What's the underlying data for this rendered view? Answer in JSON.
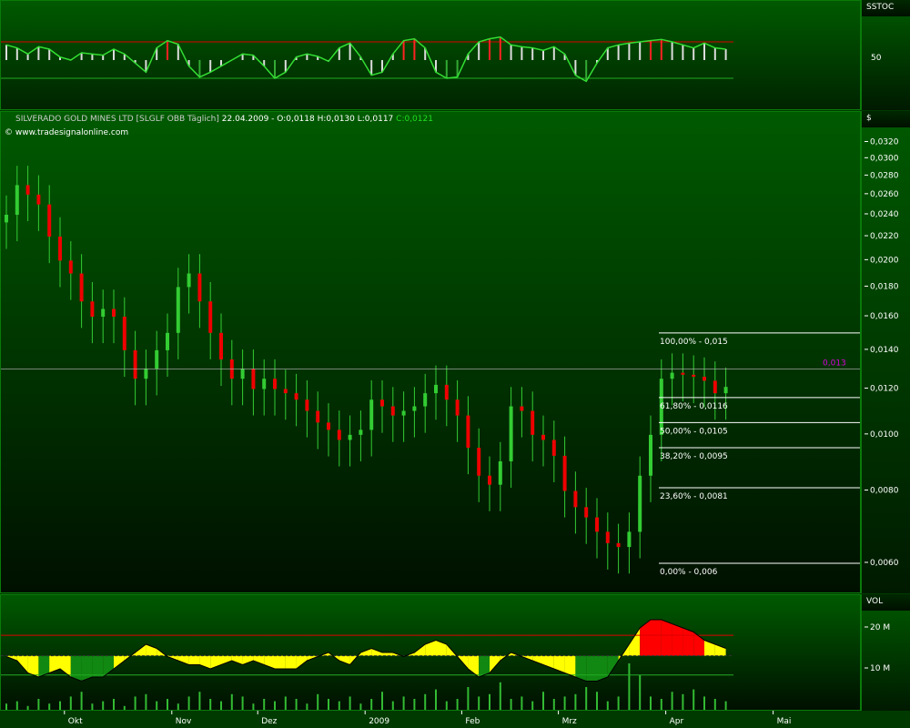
{
  "header": {
    "instrument": "SILVERADO GOLD MINES LTD [SLGLF OBB  Täglich]",
    "ohlc": "22.04.2009 - O:0,0118 H:0,0130 L:0,0117",
    "close": "C:0,0121",
    "copyright": "© www.tradesignalonline.com"
  },
  "colors": {
    "up": "#33cc33",
    "down": "#ee0000",
    "fib": "#ffffff",
    "marker": "#dd00dd",
    "bg_top": "#005a00",
    "bg_bottom": "#001000",
    "overbought": "#ff0000",
    "oversold": "#ffff00"
  },
  "sstoc": {
    "label": "SSTOC",
    "tick": "50",
    "ylim": [
      0,
      100
    ],
    "values": [
      75,
      70,
      60,
      72,
      68,
      55,
      50,
      62,
      60,
      58,
      68,
      60,
      45,
      30,
      70,
      82,
      76,
      40,
      22,
      30,
      40,
      50,
      60,
      58,
      40,
      20,
      30,
      55,
      60,
      56,
      48,
      70,
      78,
      55,
      25,
      30,
      60,
      82,
      85,
      70,
      30,
      20,
      22,
      60,
      80,
      85,
      88,
      75,
      72,
      70,
      66,
      72,
      60,
      25,
      15,
      45,
      70,
      75,
      78,
      80,
      82,
      84,
      80,
      75,
      70,
      78,
      70,
      68
    ]
  },
  "chart_data": {
    "type": "candlestick",
    "scale": "log",
    "ylim": [
      0.0055,
      0.033
    ],
    "currency_label": "$",
    "yticks": [
      "0,0320",
      "0,0300",
      "0,0280",
      "0,0260",
      "0,0240",
      "0,0220",
      "0,0200",
      "0,0180",
      "0,0160",
      "0,0140",
      "0,0120",
      "0,0100",
      "0,0080",
      "0,0060"
    ],
    "ytick_values": [
      0.032,
      0.03,
      0.028,
      0.026,
      0.024,
      0.022,
      0.02,
      0.018,
      0.016,
      0.014,
      0.012,
      0.01,
      0.008,
      0.006
    ],
    "xticks": [
      {
        "label": "Okt",
        "index": 6
      },
      {
        "label": "Nov",
        "index": 16
      },
      {
        "label": "Dez",
        "index": 24
      },
      {
        "label": "2009",
        "index": 34
      },
      {
        "label": "Feb",
        "index": 43
      },
      {
        "label": "Mrz",
        "index": 52
      },
      {
        "label": "Apr",
        "index": 62
      },
      {
        "label": "Mai",
        "index": 72
      }
    ],
    "close": [
      0.024,
      0.027,
      0.026,
      0.025,
      0.022,
      0.02,
      0.019,
      0.017,
      0.016,
      0.0165,
      0.016,
      0.014,
      0.0125,
      0.013,
      0.014,
      0.015,
      0.018,
      0.019,
      0.017,
      0.015,
      0.0135,
      0.0125,
      0.013,
      0.012,
      0.0125,
      0.012,
      0.0118,
      0.0115,
      0.011,
      0.0105,
      0.0102,
      0.0098,
      0.01,
      0.0102,
      0.0115,
      0.0112,
      0.0108,
      0.011,
      0.0112,
      0.0118,
      0.0122,
      0.0115,
      0.0108,
      0.0095,
      0.0085,
      0.0082,
      0.009,
      0.0112,
      0.011,
      0.01,
      0.0098,
      0.0092,
      0.008,
      0.0075,
      0.0072,
      0.0068,
      0.0065,
      0.0064,
      0.0068,
      0.0085,
      0.01,
      0.0125,
      0.0128,
      0.0127,
      0.0126,
      0.0124,
      0.0118,
      0.0121
    ],
    "last_marker": {
      "value": 0.013,
      "label": "0,013"
    },
    "fibonacci": [
      {
        "value": 0.015,
        "label": "100,00% - 0,015"
      },
      {
        "value": 0.0116,
        "label": "61,80% - 0,0116"
      },
      {
        "value": 0.0105,
        "label": "50,00% - 0,0105"
      },
      {
        "value": 0.0095,
        "label": "38,20% - 0,0095"
      },
      {
        "value": 0.0081,
        "label": "23,60% - 0,0081"
      },
      {
        "value": 0.006,
        "label": "0,00% - 0,006"
      }
    ]
  },
  "vol": {
    "label": "VOL",
    "ticks": [
      {
        "label": "20 M",
        "value": 20
      },
      {
        "label": "10 M",
        "value": 10
      }
    ],
    "upper": 18.2,
    "lower": 8.5,
    "mean": 13.2,
    "osc": [
      13,
      12,
      9,
      8,
      9,
      10,
      8,
      7,
      8,
      8,
      10,
      12,
      14,
      16,
      15,
      13,
      12,
      11,
      11,
      10,
      11,
      12,
      11,
      12,
      11,
      10,
      10,
      10,
      12,
      13,
      14,
      12,
      11,
      14,
      15,
      14,
      14,
      13,
      14,
      16,
      17,
      16,
      13,
      10,
      8,
      9,
      12,
      14,
      13,
      12,
      11,
      10,
      9,
      8,
      7,
      7,
      8,
      12,
      16,
      20,
      22,
      22,
      21,
      20,
      19,
      17,
      16,
      15
    ],
    "volume": [
      3,
      4,
      2,
      5,
      3,
      4,
      6,
      8,
      3,
      4,
      5,
      2,
      6,
      7,
      4,
      5,
      3,
      6,
      8,
      5,
      4,
      7,
      6,
      3,
      5,
      4,
      6,
      5,
      3,
      7,
      5,
      4,
      6,
      3,
      5,
      8,
      4,
      6,
      5,
      7,
      9,
      4,
      5,
      10,
      6,
      7,
      12,
      5,
      6,
      4,
      8,
      5,
      6,
      7,
      10,
      8,
      4,
      6,
      20,
      15,
      6,
      5,
      8,
      7,
      9,
      6,
      5,
      4
    ]
  }
}
